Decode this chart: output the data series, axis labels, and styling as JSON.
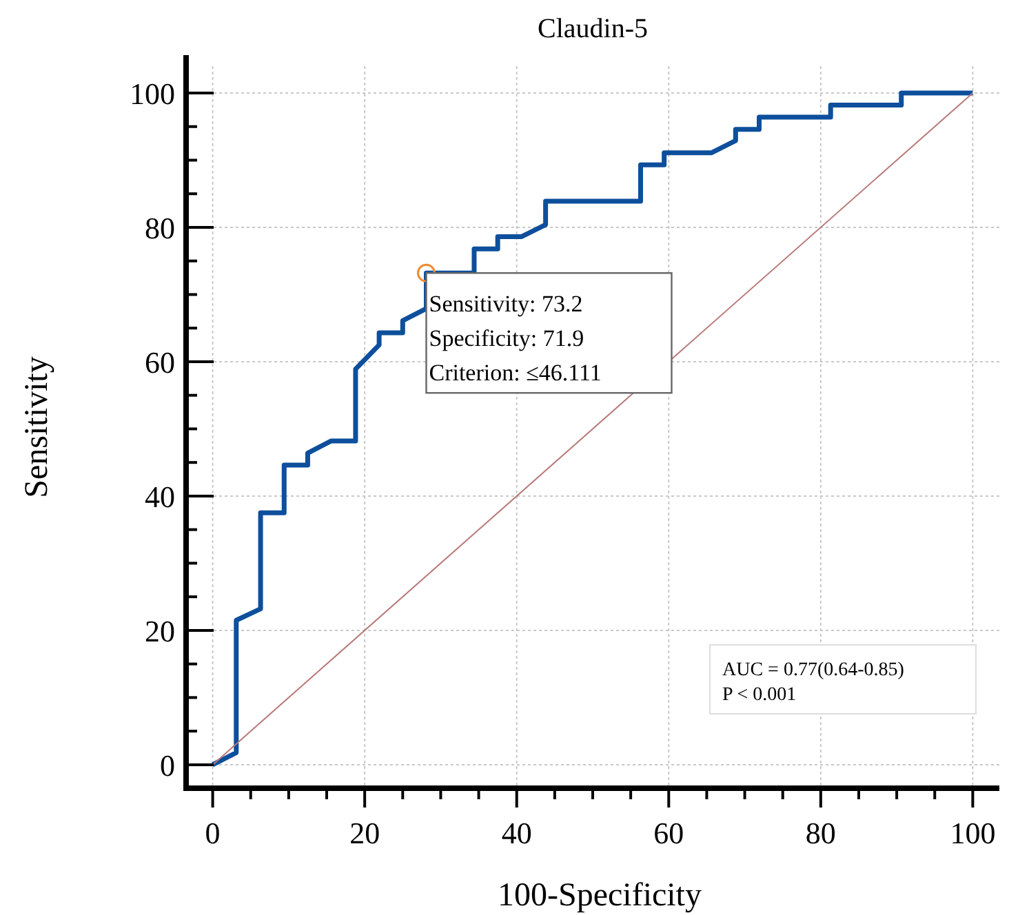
{
  "chart_data": {
    "type": "line",
    "title": "Claudin-5",
    "xlabel": "100-Specificity",
    "ylabel": "Sensitivity",
    "xlim": [
      -3.5,
      103.5
    ],
    "ylim": [
      -3.5,
      104
    ],
    "xticks": [
      0,
      {
        "value": 5,
        "label": null
      },
      {
        "value": 10,
        "label": null
      },
      {
        "value": 15,
        "label": null
      },
      20,
      {
        "value": 25,
        "label": null
      },
      {
        "value": 30,
        "label": null
      },
      {
        "value": 35,
        "label": null
      },
      40,
      {
        "value": 45,
        "label": null
      },
      {
        "value": 50,
        "label": null
      },
      {
        "value": 55,
        "label": null
      },
      60,
      {
        "value": 65,
        "label": null
      },
      {
        "value": 70,
        "label": null
      },
      {
        "value": 75,
        "label": null
      },
      80,
      {
        "value": 85,
        "label": null
      },
      {
        "value": 90,
        "label": null
      },
      {
        "value": 95,
        "label": null
      },
      100
    ],
    "yticks": [
      0,
      {
        "value": 5,
        "label": null
      },
      {
        "value": 10,
        "label": null
      },
      {
        "value": 15,
        "label": null
      },
      20,
      {
        "value": 25,
        "label": null
      },
      {
        "value": 30,
        "label": null
      },
      {
        "value": 35,
        "label": null
      },
      40,
      {
        "value": 45,
        "label": null
      },
      {
        "value": 50,
        "label": null
      },
      {
        "value": 55,
        "label": null
      },
      60,
      {
        "value": 65,
        "label": null
      },
      {
        "value": 70,
        "label": null
      },
      {
        "value": 75,
        "label": null
      },
      80,
      {
        "value": 85,
        "label": null
      },
      {
        "value": 90,
        "label": null
      },
      {
        "value": 95,
        "label": null
      },
      100
    ],
    "grid": true,
    "series": [
      {
        "color": "#0d4f9c",
        "marker": "none",
        "line_style": "solid",
        "x": [
          0,
          3.1,
          3.1,
          6.3,
          6.3,
          9.4,
          9.4,
          12.5,
          12.5,
          15.6,
          18.8,
          18.8,
          21.9,
          21.9,
          25,
          25,
          28.1,
          28.1,
          34.4,
          34.4,
          37.5,
          37.5,
          40.6,
          43.8,
          43.8,
          56.3,
          56.3,
          59.4,
          59.4,
          65.6,
          68.8,
          68.8,
          71.9,
          71.9,
          81.3,
          81.3,
          90.6,
          90.6,
          100
        ],
        "values": [
          0,
          1.8,
          21.5,
          23.2,
          37.5,
          37.5,
          44.6,
          44.6,
          46.4,
          48.2,
          48.2,
          58.9,
          62.5,
          64.3,
          64.3,
          66.1,
          67.9,
          73.2,
          73.2,
          76.8,
          76.8,
          78.6,
          78.6,
          80.4,
          83.9,
          83.9,
          89.3,
          89.3,
          91.1,
          91.1,
          92.9,
          94.6,
          94.6,
          96.4,
          96.4,
          98.2,
          98.2,
          100,
          100
        ]
      },
      {
        "type": "line",
        "color": "#b87878",
        "marker": "none",
        "line_style": "solid",
        "x": [
          0,
          100
        ],
        "values": [
          0,
          100
        ]
      },
      {
        "type": "scatter",
        "color": "#f08a30",
        "marker": "circle",
        "x": [
          28.1
        ],
        "values": [
          73.2
        ]
      }
    ],
    "annotations": [
      {
        "text": "Sensitivity: 73.2\nSpecificity: 71.9\nCriterion: ≤46.111",
        "x": 28.1,
        "y": 73.2
      },
      "AUC = 0.77(0.64-0.85)\nP < 0.001"
    ]
  }
}
